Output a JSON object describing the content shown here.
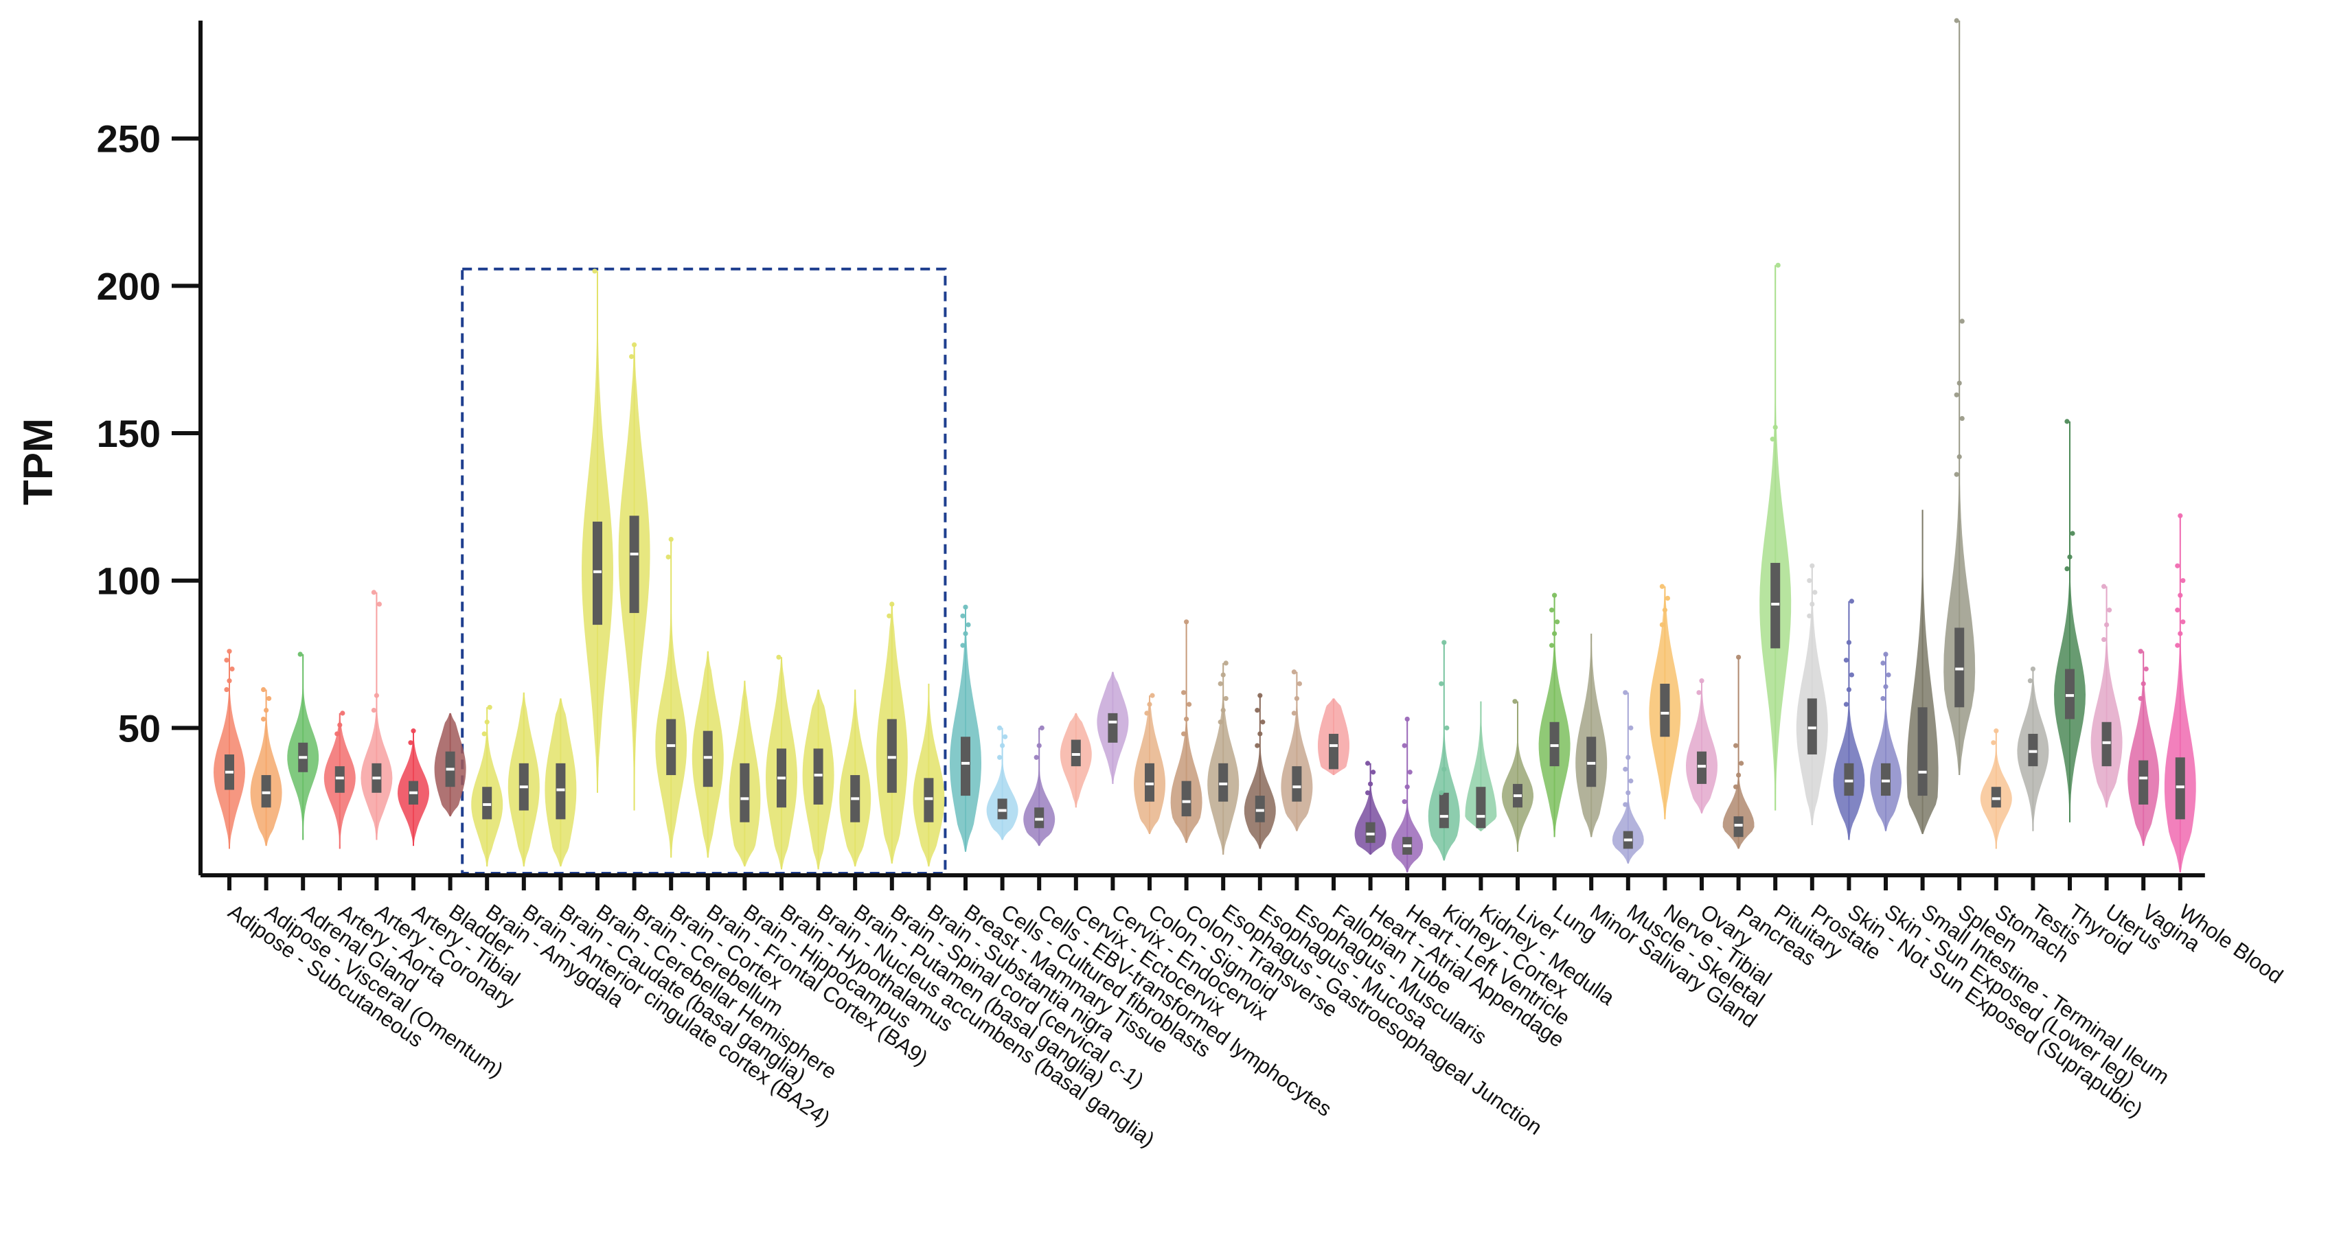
{
  "chart_data": {
    "type": "violin",
    "title": "",
    "xlabel": "",
    "ylabel": "TPM",
    "ylim": [
      0,
      290
    ],
    "yticks": [
      50,
      100,
      150,
      200,
      250
    ],
    "grid": false,
    "highlight_region": {
      "from": "Brain - Amygdala",
      "to": "Brain - Substantia nigra",
      "style": "dashed-blue-rectangle"
    },
    "categories": [
      "Adipose - Subcutaneous",
      "Adipose - Visceral (Omentum)",
      "Adrenal Gland",
      "Artery - Aorta",
      "Artery - Coronary",
      "Artery - Tibial",
      "Bladder",
      "Brain - Amygdala",
      "Brain - Anterior cingulate cortex (BA24)",
      "Brain - Caudate (basal ganglia)",
      "Brain - Cerebellar Hemisphere",
      "Brain - Cerebellum",
      "Brain - Cortex",
      "Brain - Frontal Cortex (BA9)",
      "Brain - Hippocampus",
      "Brain - Hypothalamus",
      "Brain - Nucleus accumbens (basal ganglia)",
      "Brain - Putamen (basal ganglia)",
      "Brain - Spinal cord (cervical c-1)",
      "Brain - Substantia nigra",
      "Breast - Mammary Tissue",
      "Cells - Cultured fibroblasts",
      "Cells - EBV-transformed lymphocytes",
      "Cervix - Ectocervix",
      "Cervix - Endocervix",
      "Colon - Sigmoid",
      "Colon - Transverse",
      "Esophagus - Gastroesophageal Junction",
      "Esophagus - Mucosa",
      "Esophagus - Muscularis",
      "Fallopian Tube",
      "Heart - Atrial Appendage",
      "Heart - Left Ventricle",
      "Kidney - Cortex",
      "Kidney - Medulla",
      "Liver",
      "Lung",
      "Minor Salivary Gland",
      "Muscle - Skeletal",
      "Nerve - Tibial",
      "Ovary",
      "Pancreas",
      "Pituitary",
      "Prostate",
      "Skin - Not Sun Exposed (Suprapubic)",
      "Skin - Sun Exposed (Lower leg)",
      "Small Intestine - Terminal Ileum",
      "Spleen",
      "Stomach",
      "Testis",
      "Thyroid",
      "Uterus",
      "Vagina",
      "Whole Blood"
    ],
    "series": [
      {
        "name": "Adipose - Subcutaneous",
        "color": "#f4856b",
        "min": 9,
        "q1": 29,
        "median": 35,
        "q3": 41,
        "max": 76,
        "outliers": [
          63,
          66,
          70,
          73,
          76
        ]
      },
      {
        "name": "Adipose - Visceral (Omentum)",
        "color": "#f5a96d",
        "min": 10,
        "q1": 23,
        "median": 28,
        "q3": 34,
        "max": 63,
        "outliers": [
          53,
          56,
          60,
          63
        ]
      },
      {
        "name": "Adrenal Gland",
        "color": "#6abf69",
        "min": 12,
        "q1": 35,
        "median": 40,
        "q3": 45,
        "max": 75,
        "outliers": [
          75
        ]
      },
      {
        "name": "Artery - Aorta",
        "color": "#f26f6f",
        "min": 9,
        "q1": 28,
        "median": 33,
        "q3": 37,
        "max": 55,
        "outliers": [
          48,
          51,
          55
        ]
      },
      {
        "name": "Artery - Coronary",
        "color": "#f7a1a1",
        "min": 12,
        "q1": 28,
        "median": 33,
        "q3": 38,
        "max": 96,
        "outliers": [
          56,
          61,
          92,
          96
        ]
      },
      {
        "name": "Artery - Tibial",
        "color": "#ee4455",
        "min": 10,
        "q1": 24,
        "median": 28,
        "q3": 32,
        "max": 49,
        "outliers": [
          45,
          49
        ]
      },
      {
        "name": "Bladder",
        "color": "#a15b5b",
        "min": 20,
        "q1": 30,
        "median": 36,
        "q3": 42,
        "max": 55,
        "outliers": []
      },
      {
        "name": "Brain - Amygdala",
        "color": "#e3e36a",
        "min": 3,
        "q1": 19,
        "median": 24,
        "q3": 30,
        "max": 57,
        "outliers": [
          48,
          52,
          57
        ]
      },
      {
        "name": "Brain - Anterior cingulate cortex (BA24)",
        "color": "#e3e36a",
        "min": 3,
        "q1": 22,
        "median": 30,
        "q3": 38,
        "max": 62,
        "outliers": []
      },
      {
        "name": "Brain - Caudate (basal ganglia)",
        "color": "#e3e36a",
        "min": 3,
        "q1": 19,
        "median": 29,
        "q3": 38,
        "max": 60,
        "outliers": []
      },
      {
        "name": "Brain - Cerebellar Hemisphere",
        "color": "#e3e36a",
        "min": 28,
        "q1": 85,
        "median": 103,
        "q3": 120,
        "max": 205,
        "outliers": [
          205
        ]
      },
      {
        "name": "Brain - Cerebellum",
        "color": "#e3e36a",
        "min": 22,
        "q1": 89,
        "median": 109,
        "q3": 122,
        "max": 180,
        "outliers": [
          176,
          180
        ]
      },
      {
        "name": "Brain - Cortex",
        "color": "#e3e36a",
        "min": 6,
        "q1": 34,
        "median": 44,
        "q3": 53,
        "max": 114,
        "outliers": [
          108,
          114
        ]
      },
      {
        "name": "Brain - Frontal Cortex (BA9)",
        "color": "#e3e36a",
        "min": 6,
        "q1": 30,
        "median": 40,
        "q3": 49,
        "max": 76,
        "outliers": []
      },
      {
        "name": "Brain - Hippocampus",
        "color": "#e3e36a",
        "min": 3,
        "q1": 18,
        "median": 26,
        "q3": 38,
        "max": 66,
        "outliers": []
      },
      {
        "name": "Brain - Hypothalamus",
        "color": "#e3e36a",
        "min": 2,
        "q1": 23,
        "median": 33,
        "q3": 43,
        "max": 74,
        "outliers": [
          74
        ]
      },
      {
        "name": "Brain - Nucleus accumbens (basal ganglia)",
        "color": "#e3e36a",
        "min": 2,
        "q1": 24,
        "median": 34,
        "q3": 43,
        "max": 63,
        "outliers": []
      },
      {
        "name": "Brain - Putamen (basal ganglia)",
        "color": "#e3e36a",
        "min": 3,
        "q1": 18,
        "median": 26,
        "q3": 34,
        "max": 63,
        "outliers": []
      },
      {
        "name": "Brain - Spinal cord (cervical c-1)",
        "color": "#e3e36a",
        "min": 4,
        "q1": 28,
        "median": 40,
        "q3": 53,
        "max": 92,
        "outliers": [
          88,
          92
        ]
      },
      {
        "name": "Brain - Substantia nigra",
        "color": "#e3e36a",
        "min": 3,
        "q1": 18,
        "median": 26,
        "q3": 33,
        "max": 65,
        "outliers": []
      },
      {
        "name": "Breast - Mammary Tissue",
        "color": "#6fbfbf",
        "min": 8,
        "q1": 27,
        "median": 38,
        "q3": 47,
        "max": 91,
        "outliers": [
          78,
          82,
          85,
          88,
          91
        ]
      },
      {
        "name": "Cells - Cultured fibroblasts",
        "color": "#a8d8f0",
        "min": 12,
        "q1": 19,
        "median": 22,
        "q3": 26,
        "max": 50,
        "outliers": [
          40,
          44,
          47,
          50
        ]
      },
      {
        "name": "Cells - EBV-transformed lymphocytes",
        "color": "#9a7fc0",
        "min": 10,
        "q1": 16,
        "median": 19,
        "q3": 23,
        "max": 50,
        "outliers": [
          40,
          44,
          50
        ]
      },
      {
        "name": "Cervix - Ectocervix",
        "color": "#f7b3a4",
        "min": 23,
        "q1": 37,
        "median": 41,
        "q3": 46,
        "max": 55,
        "outliers": []
      },
      {
        "name": "Cervix - Endocervix",
        "color": "#c7a7d8",
        "min": 31,
        "q1": 45,
        "median": 52,
        "q3": 55,
        "max": 69,
        "outliers": []
      },
      {
        "name": "Colon - Sigmoid",
        "color": "#e8b48a",
        "min": 14,
        "q1": 25,
        "median": 31,
        "q3": 38,
        "max": 61,
        "outliers": [
          55,
          58,
          61
        ]
      },
      {
        "name": "Colon - Transverse",
        "color": "#c79b7b",
        "min": 11,
        "q1": 20,
        "median": 25,
        "q3": 32,
        "max": 86,
        "outliers": [
          48,
          53,
          58,
          62,
          86
        ]
      },
      {
        "name": "Esophagus - Gastroesophageal Junction",
        "color": "#bca98e",
        "min": 7,
        "q1": 25,
        "median": 31,
        "q3": 38,
        "max": 72,
        "outliers": [
          52,
          56,
          60,
          65,
          68,
          72
        ]
      },
      {
        "name": "Esophagus - Mucosa",
        "color": "#8a6a5a",
        "min": 9,
        "q1": 18,
        "median": 22,
        "q3": 27,
        "max": 61,
        "outliers": [
          44,
          48,
          52,
          56,
          61
        ]
      },
      {
        "name": "Esophagus - Muscularis",
        "color": "#c8a890",
        "min": 15,
        "q1": 25,
        "median": 30,
        "q3": 37,
        "max": 69,
        "outliers": [
          55,
          60,
          65,
          69
        ]
      },
      {
        "name": "Fallopian Tube",
        "color": "#f6a3a3",
        "min": 34,
        "q1": 36,
        "median": 44,
        "q3": 48,
        "max": 60,
        "outliers": []
      },
      {
        "name": "Heart - Atrial Appendage",
        "color": "#7a4fa0",
        "min": 7,
        "q1": 11,
        "median": 14,
        "q3": 18,
        "max": 38,
        "outliers": [
          28,
          31,
          35,
          38
        ]
      },
      {
        "name": "Heart - Left Ventricle",
        "color": "#9a68b8",
        "min": 1,
        "q1": 7,
        "median": 10,
        "q3": 13,
        "max": 53,
        "outliers": [
          25,
          30,
          35,
          44,
          53
        ]
      },
      {
        "name": "Kidney - Cortex",
        "color": "#79c4a0",
        "min": 5,
        "q1": 16,
        "median": 20,
        "q3": 28,
        "max": 79,
        "outliers": [
          28,
          36,
          50,
          65,
          79
        ]
      },
      {
        "name": "Kidney - Medulla",
        "color": "#8fd0a8",
        "min": 15,
        "q1": 16,
        "median": 20,
        "q3": 30,
        "max": 59,
        "outliers": []
      },
      {
        "name": "Liver",
        "color": "#9aa775",
        "min": 8,
        "q1": 23,
        "median": 27,
        "q3": 31,
        "max": 59,
        "outliers": [
          59
        ]
      },
      {
        "name": "Lung",
        "color": "#7dbf5e",
        "min": 13,
        "q1": 37,
        "median": 44,
        "q3": 52,
        "max": 95,
        "outliers": [
          78,
          82,
          86,
          90,
          95
        ]
      },
      {
        "name": "Minor Salivary Gland",
        "color": "#a5a588",
        "min": 13,
        "q1": 30,
        "median": 38,
        "q3": 47,
        "max": 82,
        "outliers": []
      },
      {
        "name": "Muscle - Skeletal",
        "color": "#a6a6d6",
        "min": 4,
        "q1": 9,
        "median": 12,
        "q3": 15,
        "max": 62,
        "outliers": [
          24,
          28,
          32,
          36,
          40,
          50,
          62
        ]
      },
      {
        "name": "Nerve - Tibial",
        "color": "#f8c26f",
        "min": 19,
        "q1": 47,
        "median": 55,
        "q3": 65,
        "max": 98,
        "outliers": [
          85,
          90,
          94,
          98
        ]
      },
      {
        "name": "Ovary",
        "color": "#e3a8cc",
        "min": 21,
        "q1": 31,
        "median": 37,
        "q3": 42,
        "max": 66,
        "outliers": [
          62,
          66
        ]
      },
      {
        "name": "Pancreas",
        "color": "#b08a70",
        "min": 9,
        "q1": 13,
        "median": 17,
        "q3": 20,
        "max": 74,
        "outliers": [
          30,
          34,
          38,
          44,
          74
        ]
      },
      {
        "name": "Pituitary",
        "color": "#aadf8e",
        "min": 22,
        "q1": 77,
        "median": 92,
        "q3": 106,
        "max": 207,
        "outliers": [
          148,
          152,
          207
        ]
      },
      {
        "name": "Prostate",
        "color": "#d6d6d6",
        "min": 17,
        "q1": 41,
        "median": 50,
        "q3": 60,
        "max": 105,
        "outliers": [
          88,
          92,
          96,
          100,
          105
        ]
      },
      {
        "name": "Skin - Not Sun Exposed (Suprapubic)",
        "color": "#6b70b8",
        "min": 12,
        "q1": 27,
        "median": 32,
        "q3": 38,
        "max": 93,
        "outliers": [
          58,
          63,
          68,
          73,
          79,
          93
        ]
      },
      {
        "name": "Skin - Sun Exposed (Lower leg)",
        "color": "#8a8ac8",
        "min": 15,
        "q1": 27,
        "median": 32,
        "q3": 38,
        "max": 75,
        "outliers": [
          60,
          64,
          68,
          72,
          75
        ]
      },
      {
        "name": "Small Intestine - Terminal Ileum",
        "color": "#7d7a68",
        "min": 14,
        "q1": 27,
        "median": 35,
        "q3": 57,
        "max": 124,
        "outliers": []
      },
      {
        "name": "Spleen",
        "color": "#9a9a88",
        "min": 34,
        "q1": 57,
        "median": 70,
        "q3": 84,
        "max": 290,
        "outliers": [
          136,
          142,
          155,
          163,
          167,
          188,
          290
        ]
      },
      {
        "name": "Stomach",
        "color": "#f8c494",
        "min": 9,
        "q1": 23,
        "median": 26,
        "q3": 30,
        "max": 49,
        "outliers": [
          45,
          49
        ]
      },
      {
        "name": "Testis",
        "color": "#b3b3ad",
        "min": 15,
        "q1": 37,
        "median": 42,
        "q3": 48,
        "max": 70,
        "outliers": [
          66,
          70
        ]
      },
      {
        "name": "Thyroid",
        "color": "#4e8a58",
        "min": 18,
        "q1": 53,
        "median": 61,
        "q3": 70,
        "max": 154,
        "outliers": [
          104,
          108,
          116,
          154
        ]
      },
      {
        "name": "Uterus",
        "color": "#e3a8c8",
        "min": 23,
        "q1": 37,
        "median": 45,
        "q3": 52,
        "max": 98,
        "outliers": [
          80,
          85,
          90,
          98
        ]
      },
      {
        "name": "Vagina",
        "color": "#e06aa8",
        "min": 10,
        "q1": 24,
        "median": 33,
        "q3": 39,
        "max": 76,
        "outliers": [
          60,
          65,
          70,
          76
        ]
      },
      {
        "name": "Whole Blood",
        "color": "#f06ab0",
        "min": 1,
        "q1": 19,
        "median": 30,
        "q3": 40,
        "max": 122,
        "outliers": [
          78,
          82,
          86,
          90,
          95,
          100,
          105,
          122
        ]
      }
    ]
  }
}
